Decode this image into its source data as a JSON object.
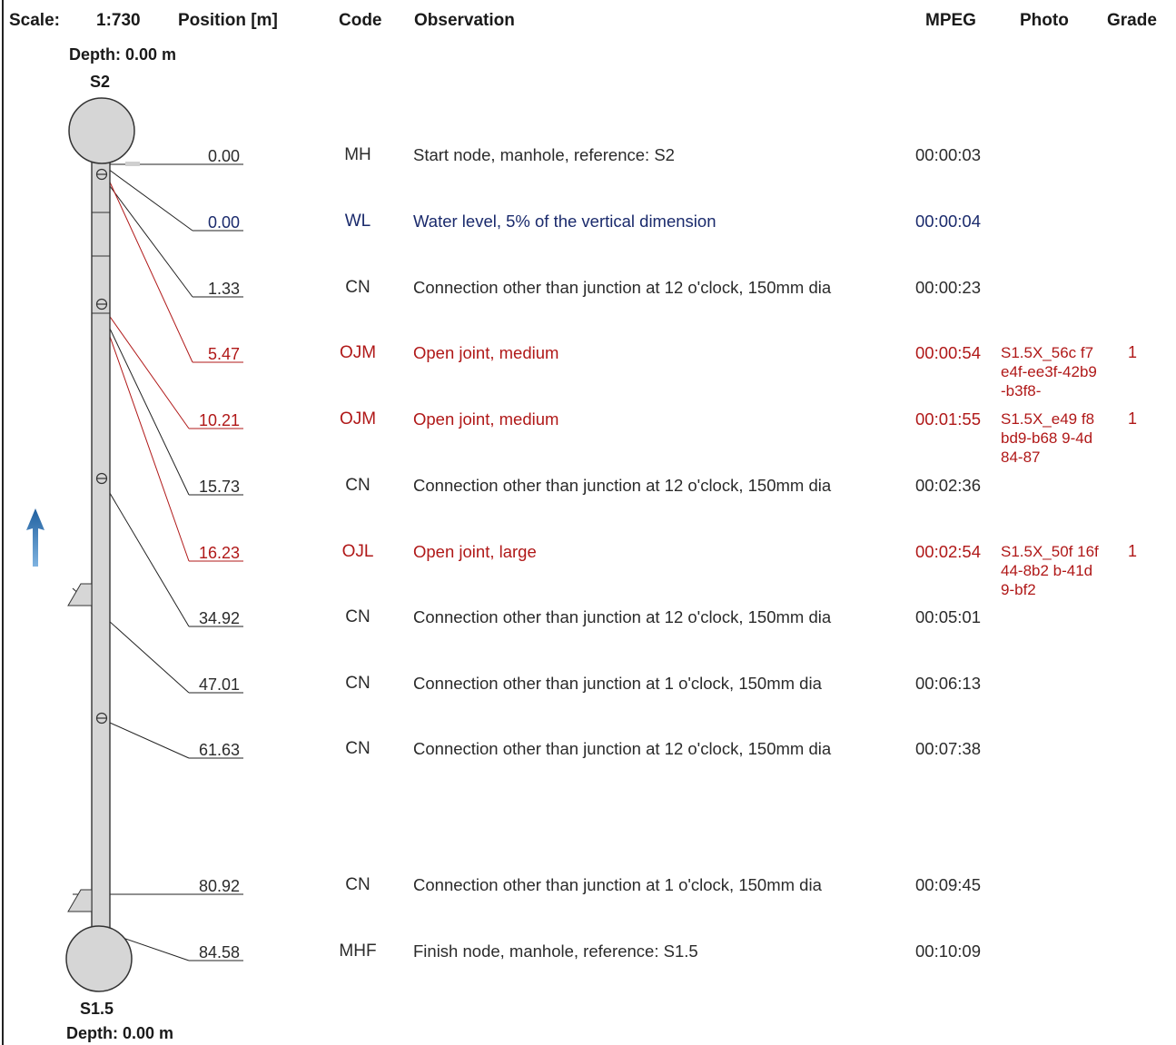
{
  "header": {
    "scale_label": "Scale:",
    "scale_value": "1:730",
    "position_label": "Position [m]",
    "code_label": "Code",
    "observation_label": "Observation",
    "mpeg_label": "MPEG",
    "photo_label": "Photo",
    "grade_label": "Grade"
  },
  "start_node": {
    "depth": "Depth: 0.00 m",
    "name": "S2"
  },
  "finish_node": {
    "depth": "Depth: 0.00 m",
    "name": "S1.5"
  },
  "colors": {
    "normal": "#2b2b2b",
    "water_level": "#1a2a6c",
    "defect": "#b01818",
    "pipe_fill": "#d6d6d6",
    "arrow": "#1f6fb5"
  },
  "flow_direction_icon": "up-arrow-icon",
  "rows": [
    {
      "position": "0.00",
      "code": "MH",
      "observation": "Start node, manhole, reference: S2",
      "mpeg": "00:00:03",
      "photo": "",
      "grade": "",
      "style": "normal"
    },
    {
      "position": "0.00",
      "code": "WL",
      "observation": "Water level, 5% of the vertical dimension",
      "mpeg": "00:00:04",
      "photo": "",
      "grade": "",
      "style": "water"
    },
    {
      "position": "1.33",
      "code": "CN",
      "observation": "Connection other than junction at 12 o'clock, 150mm dia",
      "mpeg": "00:00:23",
      "photo": "",
      "grade": "",
      "style": "normal"
    },
    {
      "position": "5.47",
      "code": "OJM",
      "observation": "Open joint, medium",
      "mpeg": "00:00:54",
      "photo": "S1.5X_56c f7e4f-ee3f-42b9-b3f8-",
      "grade": "1",
      "style": "defect"
    },
    {
      "position": "10.21",
      "code": "OJM",
      "observation": "Open joint, medium",
      "mpeg": "00:01:55",
      "photo": "S1.5X_e49 f8bd9-b68 9-4d84-87",
      "grade": "1",
      "style": "defect"
    },
    {
      "position": "15.73",
      "code": "CN",
      "observation": "Connection other than junction at 12 o'clock, 150mm dia",
      "mpeg": "00:02:36",
      "photo": "",
      "grade": "",
      "style": "normal"
    },
    {
      "position": "16.23",
      "code": "OJL",
      "observation": "Open joint, large",
      "mpeg": "00:02:54",
      "photo": "S1.5X_50f 16f44-8b2 b-41d9-bf2",
      "grade": "1",
      "style": "defect"
    },
    {
      "position": "34.92",
      "code": "CN",
      "observation": "Connection other than junction at 12 o'clock, 150mm dia",
      "mpeg": "00:05:01",
      "photo": "",
      "grade": "",
      "style": "normal"
    },
    {
      "position": "47.01",
      "code": "CN",
      "observation": "Connection other than junction at 1 o'clock, 150mm dia",
      "mpeg": "00:06:13",
      "photo": "",
      "grade": "",
      "style": "normal"
    },
    {
      "position": "61.63",
      "code": "CN",
      "observation": "Connection other than junction at 12 o'clock, 150mm dia",
      "mpeg": "00:07:38",
      "photo": "",
      "grade": "",
      "style": "normal"
    },
    {
      "position": "80.92",
      "code": "CN",
      "observation": "Connection other than junction at 1 o'clock, 150mm dia",
      "mpeg": "00:09:45",
      "photo": "",
      "grade": "",
      "style": "normal"
    },
    {
      "position": "84.58",
      "code": "MHF",
      "observation": "Finish node, manhole, reference: S1.5",
      "mpeg": "00:10:09",
      "photo": "",
      "grade": "",
      "style": "normal"
    }
  ]
}
